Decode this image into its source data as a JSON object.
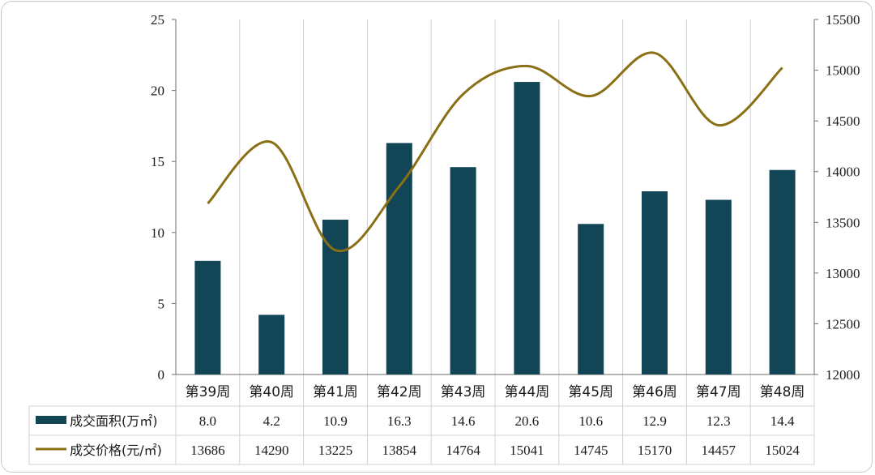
{
  "colors": {
    "bar": "#124555",
    "line": "#8a6f14",
    "grid": "#d0d0d0",
    "axis": "#6e6e6e"
  },
  "chart_data": {
    "type": "bar+line",
    "categories": [
      "第39周",
      "第40周",
      "第41周",
      "第42周",
      "第43周",
      "第44周",
      "第45周",
      "第46周",
      "第47周",
      "第48周"
    ],
    "series": [
      {
        "name": "成交面积(万㎡)",
        "type": "bar",
        "axis": "left",
        "values": [
          8.0,
          4.2,
          10.9,
          16.3,
          14.6,
          20.6,
          10.6,
          12.9,
          12.3,
          14.4
        ],
        "labels": [
          "8.0",
          "4.2",
          "10.9",
          "16.3",
          "14.6",
          "20.6",
          "10.6",
          "12.9",
          "12.3",
          "14.4"
        ]
      },
      {
        "name": "成交价格(元/㎡)",
        "type": "line",
        "axis": "right",
        "smooth": true,
        "values": [
          13686,
          14290,
          13225,
          13854,
          14764,
          15041,
          14745,
          15170,
          14457,
          15024
        ],
        "labels": [
          "13686",
          "14290",
          "13225",
          "13854",
          "14764",
          "15041",
          "14745",
          "15170",
          "14457",
          "15024"
        ]
      }
    ],
    "y_left": {
      "min": 0,
      "max": 25,
      "ticks": [
        0,
        5,
        10,
        15,
        20,
        25
      ]
    },
    "y_right": {
      "min": 12000,
      "max": 15500,
      "ticks": [
        12000,
        12500,
        13000,
        13500,
        14000,
        14500,
        15000,
        15500
      ]
    },
    "grid": "vertical category separators",
    "legend": "data table below chart"
  }
}
